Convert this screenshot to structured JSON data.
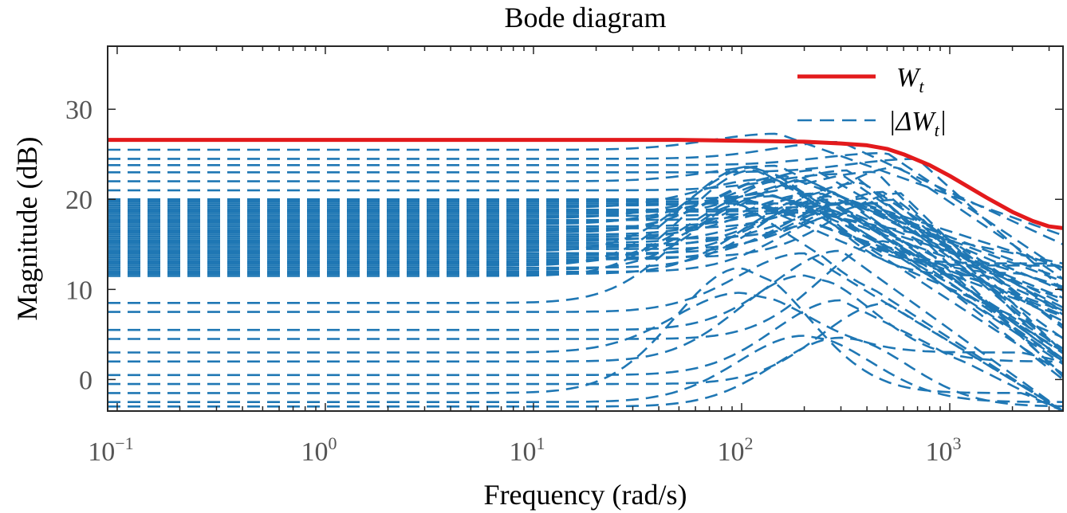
{
  "chart_data": {
    "type": "line",
    "title": "Bode diagram",
    "xlabel": "Frequency (rad/s)",
    "ylabel": "Magnitude (dB)",
    "x_scale": "log",
    "xlim": [
      0.09,
      3500
    ],
    "ylim": [
      -3.5,
      37
    ],
    "x_tick_labels": [
      {
        "value": 0.1,
        "base": "10",
        "exp": "−1"
      },
      {
        "value": 1,
        "base": "10",
        "exp": "0"
      },
      {
        "value": 10,
        "base": "10",
        "exp": "1"
      },
      {
        "value": 100,
        "base": "10",
        "exp": "2"
      },
      {
        "value": 1000,
        "base": "10",
        "exp": "3"
      }
    ],
    "y_ticks": [
      0,
      10,
      20,
      30
    ],
    "grid": false,
    "legend": {
      "position": "top-right",
      "entries": [
        {
          "label_main": "W",
          "label_sub": "t",
          "style": "solid",
          "color": "#e31a1c"
        },
        {
          "label_main": "|ΔW",
          "label_sub": "t",
          "label_tail": "|",
          "style": "dashed",
          "color": "#1f77b4"
        }
      ]
    },
    "series": [
      {
        "name": "W_t",
        "style": "solid",
        "color": "#e31a1c",
        "x": [
          0.09,
          1,
          10,
          50,
          100,
          200,
          300,
          400,
          500,
          600,
          800,
          1000,
          1500,
          2000,
          2500,
          3000,
          3500
        ],
        "y": [
          26.6,
          26.6,
          26.6,
          26.6,
          26.5,
          26.4,
          26.2,
          26.0,
          25.6,
          25.0,
          23.8,
          22.6,
          20.2,
          18.6,
          17.6,
          17.0,
          16.8
        ]
      },
      {
        "name": "|ΔW_t| (upper group)",
        "style": "dashed",
        "color": "#1f77b4",
        "low_freq_levels": [
          25.5,
          24.5,
          23.8,
          23.0,
          22.0,
          21.0
        ],
        "peak_freqs": [
          150,
          300,
          500,
          700
        ],
        "high_freq_end": [
          16,
          15,
          12,
          10,
          8,
          6
        ]
      },
      {
        "name": "|ΔW_t| (dense band)",
        "style": "dashed",
        "color": "#1f77b4",
        "low_freq_range": [
          11.5,
          20.0
        ],
        "peak_range": [
          18,
          24
        ],
        "peak_freq_range": [
          100,
          600
        ],
        "high_freq_end_range": [
          0,
          13
        ]
      },
      {
        "name": "|ΔW_t| (lower group)",
        "style": "dashed",
        "color": "#1f77b4",
        "low_freq_levels": [
          8.5,
          7.5,
          5.5,
          4.5,
          3.0,
          2.0,
          0.5,
          -0.5,
          -1.5,
          -2.5,
          -3.0
        ],
        "peak_freqs": [
          100,
          200,
          300,
          500
        ],
        "high_freq_end": [
          -3.5,
          -3.5,
          -3.5,
          0,
          2,
          4
        ]
      }
    ]
  }
}
